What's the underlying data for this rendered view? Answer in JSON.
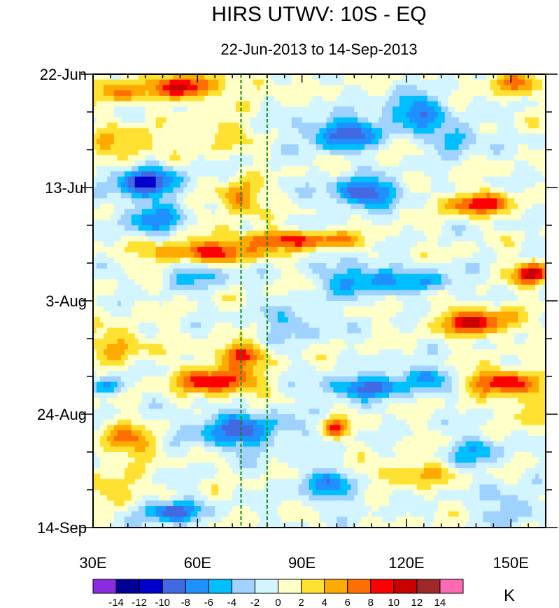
{
  "chart_data": {
    "type": "heatmap",
    "title": "HIRS UTWV: 10S - EQ",
    "subtitle": "22-Jun-2013 to 14-Sep-2013",
    "xaxis": {
      "label": "",
      "range": [
        30,
        160
      ],
      "ticks": [
        30,
        60,
        90,
        120,
        150
      ],
      "tick_labels": [
        "30E",
        "60E",
        "90E",
        "120E",
        "150E"
      ],
      "minor_step": 5
    },
    "yaxis": {
      "label": "",
      "range_days": [
        0,
        84
      ],
      "ticks": [
        0,
        21,
        42,
        63,
        84
      ],
      "tick_labels": [
        "22-Jun",
        "13-Jul",
        "3-Aug",
        "24-Aug",
        "14-Sep"
      ],
      "minor_step": 7
    },
    "reference_lines_lon": [
      72.5,
      80
    ],
    "colorbar": {
      "units": "K",
      "levels": [
        -14,
        -12,
        -10,
        -8,
        -6,
        -4,
        -2,
        0,
        2,
        4,
        6,
        8,
        10,
        12,
        14
      ],
      "labels": [
        "-14",
        "-12",
        "-10",
        "-8",
        "-6",
        "-4",
        "-2",
        "0",
        "2",
        "4",
        "6",
        "8",
        "10",
        "12",
        "14"
      ],
      "colors": [
        "#8a2be2",
        "#000096",
        "#0000cd",
        "#4169e1",
        "#1e90ff",
        "#00bfff",
        "#a0d2ff",
        "#d2f5ff",
        "#ffffc8",
        "#ffe132",
        "#ffaa00",
        "#ff6e00",
        "#ff0000",
        "#c80000",
        "#a02828",
        "#ff69b4"
      ]
    },
    "anomaly_features": [
      {
        "lon": 57,
        "day": 2.5,
        "value": 11,
        "wlon": 8,
        "wday": 2.2
      },
      {
        "lon": 38,
        "day": 3,
        "value": 6,
        "wlon": 9,
        "wday": 2.5
      },
      {
        "lon": 78,
        "day": 2,
        "value": 3,
        "wlon": 6,
        "wday": 2
      },
      {
        "lon": 40,
        "day": 13,
        "value": 5,
        "wlon": 10,
        "wday": 3
      },
      {
        "lon": 66,
        "day": 11,
        "value": 4,
        "wlon": 7,
        "wday": 3
      },
      {
        "lon": 102,
        "day": 11,
        "value": -9,
        "wlon": 11,
        "wday": 3
      },
      {
        "lon": 123,
        "day": 7,
        "value": -8,
        "wlon": 9,
        "wday": 3
      },
      {
        "lon": 134,
        "day": 12,
        "value": -6,
        "wlon": 7,
        "wday": 2.5
      },
      {
        "lon": 150,
        "day": 1.5,
        "value": 6,
        "wlon": 8,
        "wday": 2
      },
      {
        "lon": 45,
        "day": 20,
        "value": -10,
        "wlon": 10,
        "wday": 3
      },
      {
        "lon": 47,
        "day": 27,
        "value": -7,
        "wlon": 8,
        "wday": 3
      },
      {
        "lon": 72,
        "day": 23,
        "value": 7,
        "wlon": 6,
        "wday": 3
      },
      {
        "lon": 108,
        "day": 22,
        "value": -10,
        "wlon": 10,
        "wday": 2.5
      },
      {
        "lon": 140,
        "day": 24,
        "value": 9,
        "wlon": 10,
        "wday": 2
      },
      {
        "lon": 62,
        "day": 33,
        "value": 9,
        "wlon": 17,
        "wday": 2
      },
      {
        "lon": 82,
        "day": 30.5,
        "value": 7,
        "wlon": 14,
        "wday": 1.6
      },
      {
        "lon": 98,
        "day": 31,
        "value": 5,
        "wlon": 10,
        "wday": 1.5
      },
      {
        "lon": 60,
        "day": 37,
        "value": -5,
        "wlon": 9,
        "wday": 2.5
      },
      {
        "lon": 108,
        "day": 38,
        "value": -7,
        "wlon": 12,
        "wday": 3
      },
      {
        "lon": 128,
        "day": 38.5,
        "value": -5,
        "wlon": 8,
        "wday": 2
      },
      {
        "lon": 156,
        "day": 37,
        "value": 11,
        "wlon": 5,
        "wday": 2
      },
      {
        "lon": 140,
        "day": 46,
        "value": 10,
        "wlon": 10,
        "wday": 2.5
      },
      {
        "lon": 38,
        "day": 50,
        "value": 5,
        "wlon": 8,
        "wday": 3
      },
      {
        "lon": 72,
        "day": 52,
        "value": 9,
        "wlon": 7,
        "wday": 2
      },
      {
        "lon": 66,
        "day": 57,
        "value": 10,
        "wlon": 11,
        "wday": 2.5
      },
      {
        "lon": 108,
        "day": 58,
        "value": -9,
        "wlon": 12,
        "wday": 2
      },
      {
        "lon": 125,
        "day": 56,
        "value": -6,
        "wlon": 8,
        "wday": 2
      },
      {
        "lon": 148,
        "day": 57,
        "value": 10,
        "wlon": 10,
        "wday": 2.2
      },
      {
        "lon": 34,
        "day": 58,
        "value": -8,
        "wlon": 4,
        "wday": 1.5
      },
      {
        "lon": 88,
        "day": 46,
        "value": -4,
        "wlon": 10,
        "wday": 3
      },
      {
        "lon": 40,
        "day": 68,
        "value": 6,
        "wlon": 9,
        "wday": 3
      },
      {
        "lon": 72,
        "day": 66,
        "value": -8,
        "wlon": 14,
        "wday": 3.5
      },
      {
        "lon": 100,
        "day": 65.5,
        "value": 8,
        "wlon": 3.5,
        "wday": 1.8
      },
      {
        "lon": 156,
        "day": 62,
        "value": 5,
        "wlon": 6,
        "wday": 3
      },
      {
        "lon": 120,
        "day": 74,
        "value": 5,
        "wlon": 13,
        "wday": 2
      },
      {
        "lon": 98,
        "day": 76,
        "value": -6,
        "wlon": 10,
        "wday": 3
      },
      {
        "lon": 52,
        "day": 81,
        "value": -9,
        "wlon": 9,
        "wday": 2
      },
      {
        "lon": 140,
        "day": 70,
        "value": -5,
        "wlon": 8,
        "wday": 3
      },
      {
        "lon": 36,
        "day": 77,
        "value": 5,
        "wlon": 6,
        "wday": 3
      },
      {
        "lon": 150,
        "day": 80,
        "value": -4,
        "wlon": 8,
        "wday": 3
      }
    ]
  }
}
